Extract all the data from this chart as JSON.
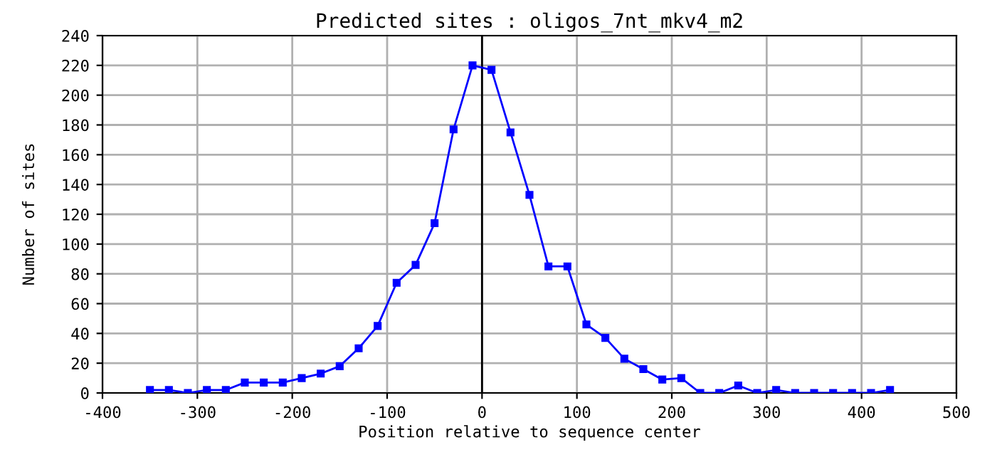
{
  "chart_data": {
    "type": "line",
    "title": "Predicted sites : oligos_7nt_mkv4_m2",
    "xlabel": "Position relative to sequence center",
    "ylabel": "Number of sites",
    "x": [
      -350,
      -330,
      -310,
      -290,
      -270,
      -250,
      -230,
      -210,
      -190,
      -170,
      -150,
      -130,
      -110,
      -90,
      -70,
      -50,
      -30,
      -10,
      10,
      30,
      50,
      70,
      90,
      110,
      130,
      150,
      170,
      190,
      210,
      230,
      250,
      270,
      290,
      310,
      330,
      350,
      370,
      390,
      410,
      430
    ],
    "series": [
      {
        "color": "#0000ff",
        "values": [
          2,
          2,
          0,
          2,
          2,
          7,
          7,
          7,
          10,
          13,
          18,
          30,
          45,
          74,
          86,
          114,
          177,
          220,
          217,
          175,
          133,
          85,
          85,
          46,
          37,
          23,
          16,
          9,
          10,
          0,
          0,
          5,
          0,
          2,
          0,
          0,
          0,
          0,
          0,
          2
        ]
      }
    ],
    "xlim": [
      -400,
      500
    ],
    "xticks": [
      -400,
      -300,
      -200,
      -100,
      0,
      100,
      200,
      300,
      400,
      500
    ],
    "ylim": [
      0,
      240
    ],
    "yticks": [
      0,
      20,
      40,
      60,
      80,
      100,
      120,
      140,
      160,
      180,
      200,
      220,
      240
    ],
    "ref_lines": [
      {
        "axis": "x",
        "value": 0,
        "color": "#000000"
      }
    ],
    "grid": true,
    "marker": "square",
    "line_style": "solid",
    "legend": false
  }
}
